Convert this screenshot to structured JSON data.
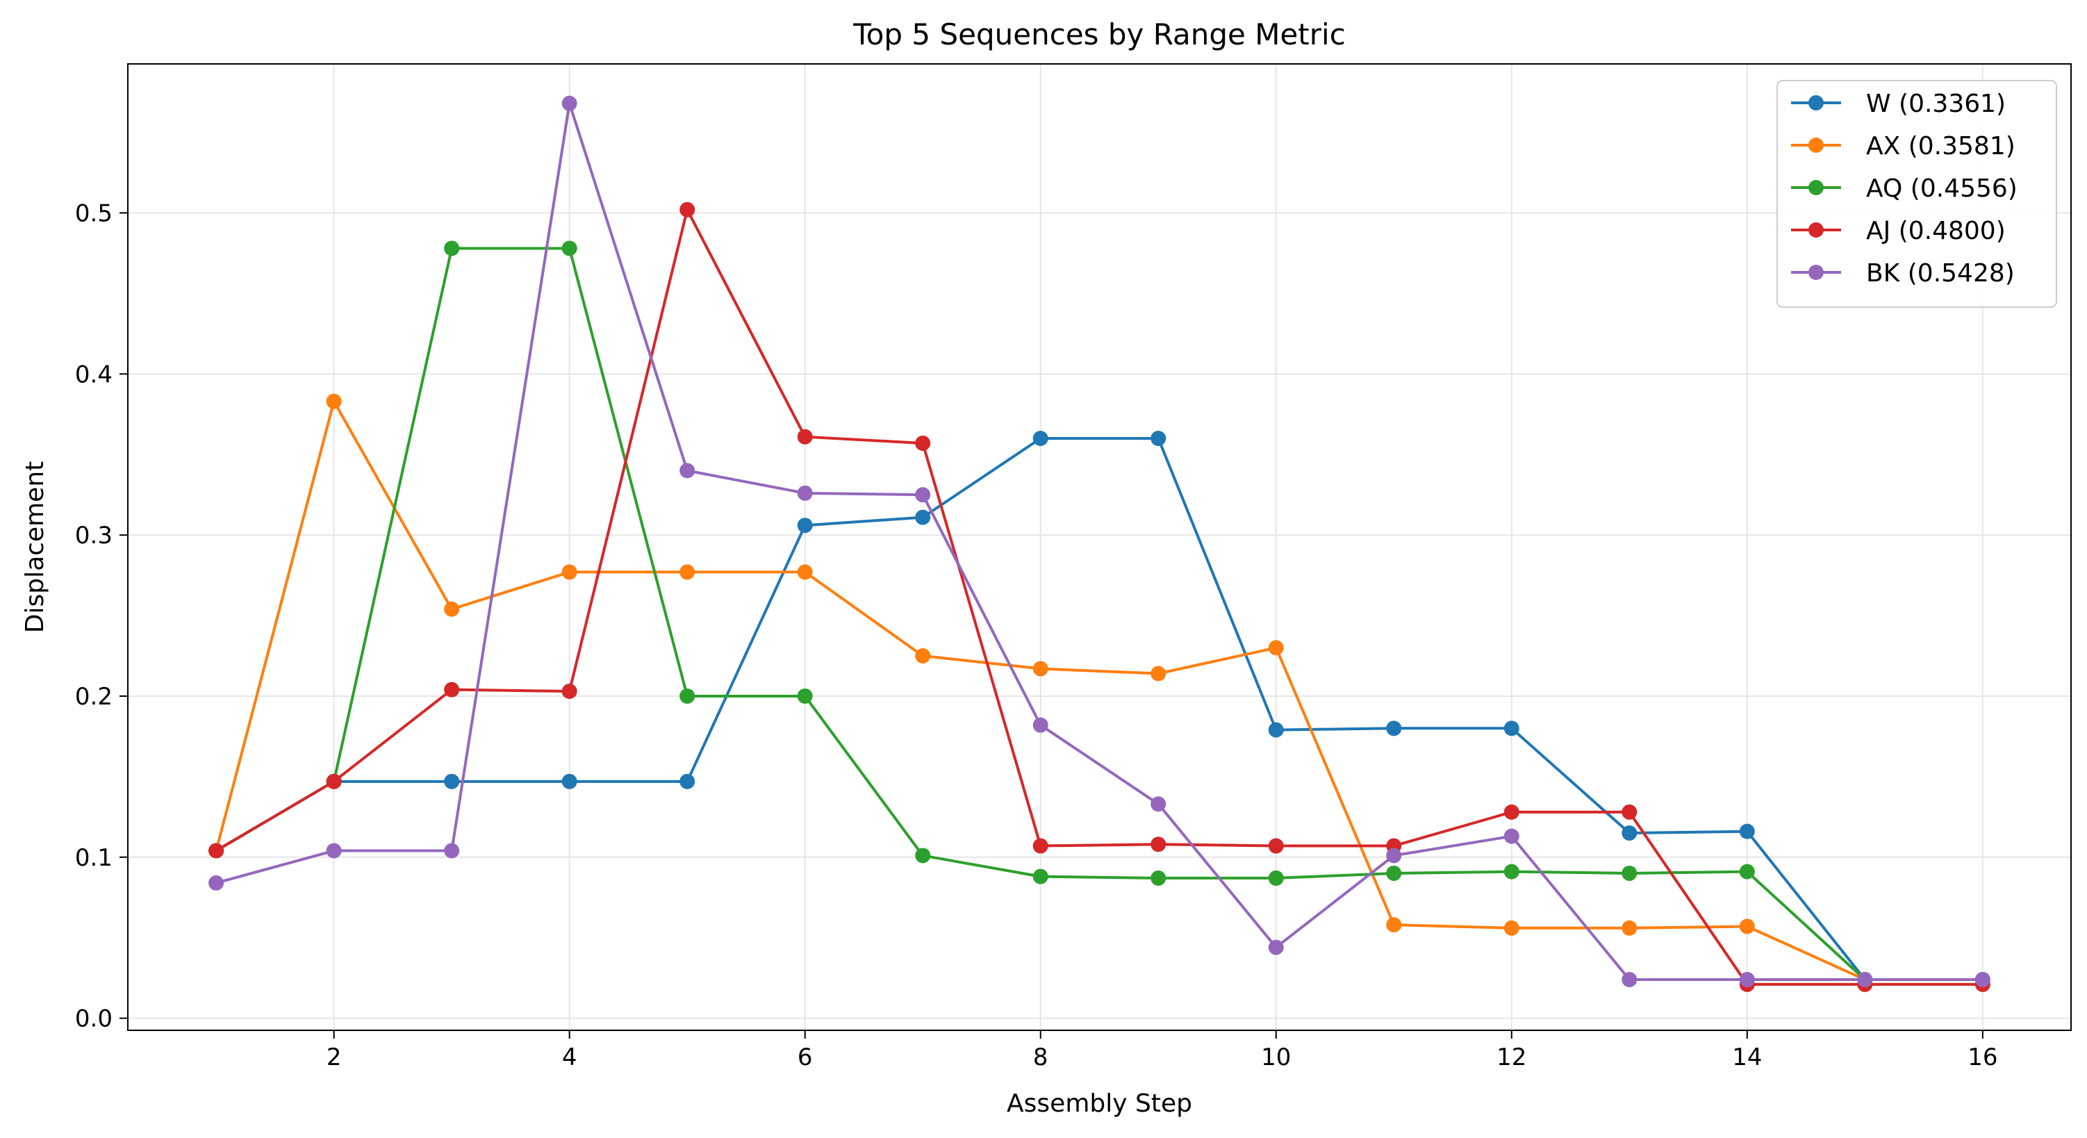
{
  "chart_data": {
    "type": "line",
    "title": "Top 5 Sequences by Range Metric",
    "xlabel": "Assembly Step",
    "ylabel": "Displacement",
    "xlim": [
      0.25,
      16.75
    ],
    "ylim": [
      -0.0075,
      0.5925
    ],
    "xticks": [
      2,
      4,
      6,
      8,
      10,
      12,
      14,
      16
    ],
    "yticks": [
      0.0,
      0.1,
      0.2,
      0.3,
      0.4,
      0.5
    ],
    "ytick_labels": [
      "0.0",
      "0.1",
      "0.2",
      "0.3",
      "0.4",
      "0.5"
    ],
    "grid": true,
    "legend_position": "top-right",
    "x": [
      1,
      2,
      3,
      4,
      5,
      6,
      7,
      8,
      9,
      10,
      11,
      12,
      13,
      14,
      15,
      16
    ],
    "series": [
      {
        "name": "W (0.3361)",
        "color": "#1f77b4",
        "values": [
          0.104,
          0.147,
          0.147,
          0.147,
          0.147,
          0.306,
          0.311,
          0.36,
          0.36,
          0.179,
          0.18,
          0.18,
          0.115,
          0.116,
          0.024,
          0.024
        ]
      },
      {
        "name": "AX (0.3581)",
        "color": "#ff7f0e",
        "values": [
          0.104,
          0.383,
          0.254,
          0.277,
          0.277,
          0.277,
          0.225,
          0.217,
          0.214,
          0.23,
          0.058,
          0.056,
          0.056,
          0.057,
          0.024,
          0.024
        ]
      },
      {
        "name": "AQ (0.4556)",
        "color": "#2ca02c",
        "values": [
          0.104,
          0.147,
          0.478,
          0.478,
          0.2,
          0.2,
          0.101,
          0.088,
          0.087,
          0.087,
          0.09,
          0.091,
          0.09,
          0.091,
          0.024,
          0.024
        ]
      },
      {
        "name": "AJ (0.4800)",
        "color": "#d62728",
        "values": [
          0.104,
          0.147,
          0.204,
          0.203,
          0.502,
          0.361,
          0.357,
          0.107,
          0.108,
          0.107,
          0.107,
          0.128,
          0.128,
          0.021,
          0.021,
          0.021
        ]
      },
      {
        "name": "BK (0.5428)",
        "color": "#9467bd",
        "values": [
          0.084,
          0.104,
          0.104,
          0.568,
          0.34,
          0.326,
          0.325,
          0.182,
          0.133,
          0.044,
          0.101,
          0.113,
          0.024,
          0.024,
          0.024,
          0.024
        ]
      }
    ]
  }
}
